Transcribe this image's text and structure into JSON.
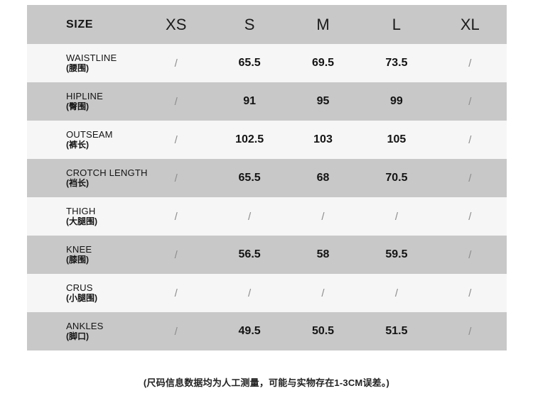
{
  "table": {
    "header": {
      "label": "SIZE",
      "sizes": [
        "XS",
        "S",
        "M",
        "L",
        "XL"
      ]
    },
    "rows": [
      {
        "en": "WAISTLINE",
        "zh": "(腰围)",
        "values": [
          "/",
          "65.5",
          "69.5",
          "73.5",
          "/"
        ]
      },
      {
        "en": "HIPLINE",
        "zh": "(臀围)",
        "values": [
          "/",
          "91",
          "95",
          "99",
          "/"
        ]
      },
      {
        "en": "OUTSEAM",
        "zh": "(裤长)",
        "values": [
          "/",
          "102.5",
          "103",
          "105",
          "/"
        ]
      },
      {
        "en": "CROTCH LENGTH",
        "zh": "(裆长)",
        "values": [
          "/",
          "65.5",
          "68",
          "70.5",
          "/"
        ]
      },
      {
        "en": "THIGH",
        "zh": "(大腿围)",
        "values": [
          "/",
          "/",
          "/",
          "/",
          "/"
        ]
      },
      {
        "en": "KNEE",
        "zh": "(膝围)",
        "values": [
          "/",
          "56.5",
          "58",
          "59.5",
          "/"
        ]
      },
      {
        "en": "CRUS",
        "zh": "(小腿围)",
        "values": [
          "/",
          "/",
          "/",
          "/",
          "/"
        ]
      },
      {
        "en": "ANKLES",
        "zh": "(脚口)",
        "values": [
          "/",
          "49.5",
          "50.5",
          "51.5",
          "/"
        ]
      }
    ]
  },
  "footer": {
    "note": "(尺码信息数据均为人工测量，可能与实物存在1-3CM误差。)"
  },
  "colors": {
    "row_gray": "#c8c8c8",
    "row_light": "#f6f6f6",
    "text": "#141414",
    "slash": "#8c8c8c"
  }
}
